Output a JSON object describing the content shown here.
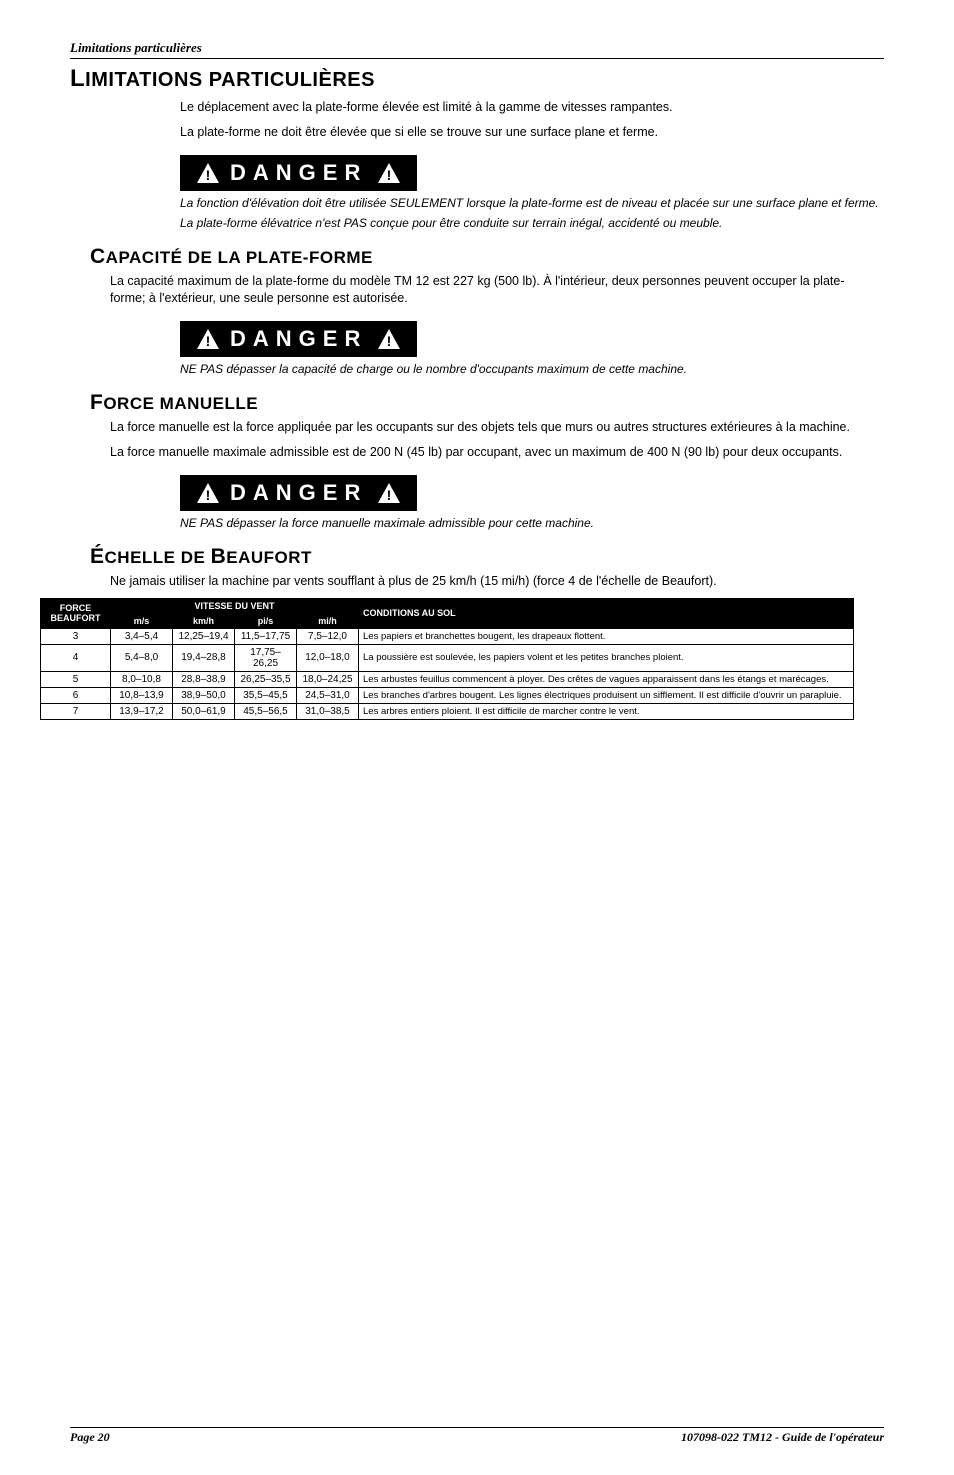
{
  "running_head": "Limitations particulières",
  "sections": {
    "limitations": {
      "title": "LIMITATIONS PARTICULIÈRES",
      "para1": "Le déplacement avec la plate-forme élevée est limité à la gamme de vitesses rampantes.",
      "para2": "La plate-forme ne doit être élevée que si elle se trouve sur une surface plane et ferme."
    },
    "danger1": {
      "label": "DANGER",
      "caption1": "La fonction d'élévation doit être utilisée SEULEMENT lorsque la plate-forme est de niveau et placée sur une surface plane et ferme.",
      "caption2": "La plate-forme élévatrice n'est PAS conçue pour être conduite sur terrain inégal, accidenté ou meuble."
    },
    "capacite": {
      "title": "CAPACITÉ DE LA PLATE-FORME",
      "para": "La capacité maximum de la plate-forme du modèle TM 12 est 227 kg (500 lb). À l'intérieur, deux personnes peuvent occuper la plate-forme; à l'extérieur, une seule personne est autorisée."
    },
    "danger2": {
      "label": "DANGER",
      "caption": "NE PAS dépasser la capacité de charge ou le nombre d'occupants maximum de cette machine."
    },
    "force": {
      "title": "FORCE MANUELLE",
      "para1": "La force manuelle est la force appliquée par les occupants sur des objets tels que murs ou autres structures extérieures à la machine.",
      "para2": "La force manuelle maximale admissible est de 200 N (45 lb) par occupant, avec un maximum de 400 N (90 lb) pour deux occupants."
    },
    "danger3": {
      "label": "DANGER",
      "caption": "NE PAS dépasser la force manuelle maximale admissible pour cette machine."
    },
    "beaufort": {
      "title": "ÉCHELLE DE BEAUFORT",
      "para": "Ne jamais utiliser la machine par vents soufflant à plus de 25 km/h (15 mi/h) (force 4 de l'échelle de Beaufort)."
    }
  },
  "table": {
    "header_force": "FORCE BEAUFORT",
    "header_vitesse": "VITESSE DU VENT",
    "header_cond": "CONDITIONS AU SOL",
    "sub_headers": [
      "m/s",
      "km/h",
      "pi/s",
      "mi/h"
    ],
    "rows": [
      {
        "f": "3",
        "ms": "3,4–5,4",
        "kmh": "12,25–19,4",
        "pis": "11,5–17,75",
        "mih": "7,5–12,0",
        "cond": "Les papiers et branchettes bougent, les drapeaux flottent."
      },
      {
        "f": "4",
        "ms": "5,4–8,0",
        "kmh": "19,4–28,8",
        "pis": "17,75–26,25",
        "mih": "12,0–18,0",
        "cond": "La poussière est soulevée, les papiers volent et les petites branches ploient."
      },
      {
        "f": "5",
        "ms": "8,0–10,8",
        "kmh": "28,8–38,9",
        "pis": "26,25–35,5",
        "mih": "18,0–24,25",
        "cond": "Les arbustes feuillus commencent à ployer. Des crêtes de vagues apparaissent dans les étangs et marécages."
      },
      {
        "f": "6",
        "ms": "10,8–13,9",
        "kmh": "38,9–50,0",
        "pis": "35,5–45,5",
        "mih": "24,5–31,0",
        "cond": "Les branches d'arbres bougent. Les lignes électriques produisent un sifflement. Il est difficile d'ouvrir un parapluie."
      },
      {
        "f": "7",
        "ms": "13,9–17,2",
        "kmh": "50,0–61,9",
        "pis": "45,5–56,5",
        "mih": "31,0–38,5",
        "cond": "Les arbres entiers ploient. Il est difficile de marcher contre le vent."
      }
    ],
    "col_widths": {
      "force": "70px",
      "ms": "62px",
      "kmh": "62px",
      "pis": "62px",
      "mih": "62px"
    },
    "colors": {
      "header_bg": "#000000",
      "header_fg": "#ffffff",
      "border": "#000000",
      "row_bg": "#ffffff"
    }
  },
  "danger_box": {
    "bg": "#000000",
    "fg": "#ffffff",
    "letter_spacing": "7px",
    "font_size": "22px"
  },
  "footer": {
    "left": "Page 20",
    "right": "107098-022 TM12 - Guide de l'opérateur"
  }
}
